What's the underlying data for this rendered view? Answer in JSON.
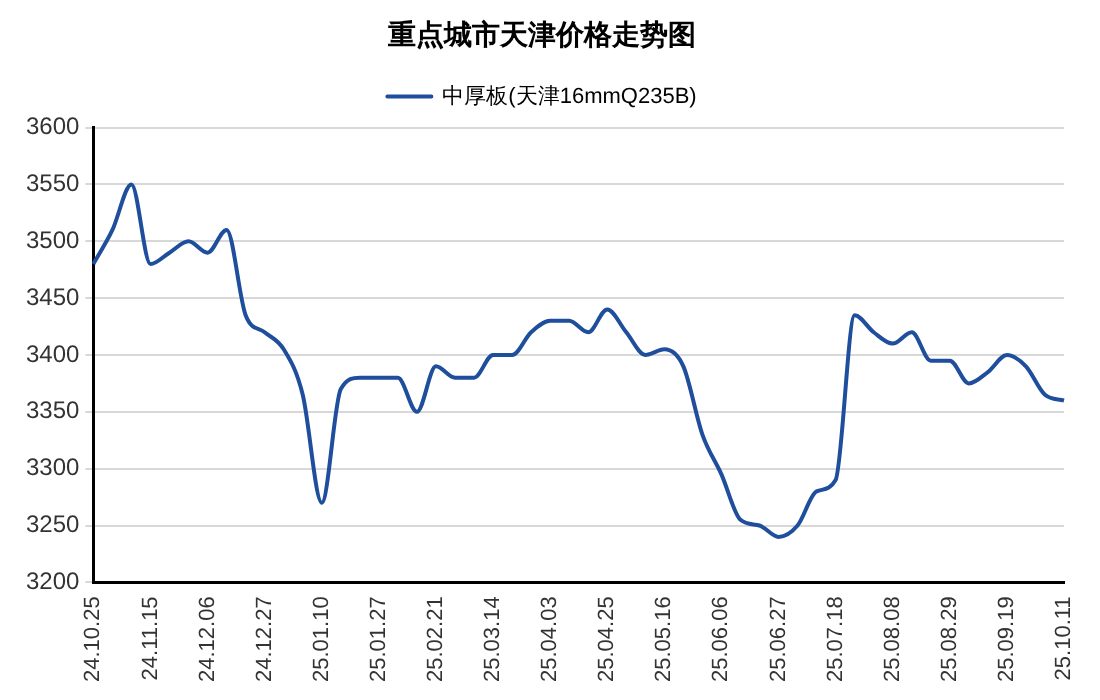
{
  "chart_data": {
    "type": "line",
    "title": "重点城市天津价格走势图",
    "categories": [
      "24.10.25",
      null,
      null,
      "24.11.15",
      null,
      null,
      "24.12.06",
      null,
      null,
      "24.12.27",
      null,
      null,
      "25.01.10",
      null,
      null,
      "25.01.27",
      null,
      null,
      "25.02.21",
      null,
      null,
      "25.03.14",
      null,
      null,
      "25.04.03",
      null,
      null,
      "25.04.25",
      null,
      null,
      "25.05.16",
      null,
      null,
      "25.06.06",
      null,
      null,
      "25.06.27",
      null,
      null,
      "25.07.18",
      null,
      null,
      "25.08.08",
      null,
      null,
      "25.08.29",
      null,
      null,
      "25.09.19",
      null,
      null,
      "25.10.11"
    ],
    "series": [
      {
        "name": "中厚板(天津16mmQ235B)",
        "color": "#1f4e9c",
        "values": [
          3480,
          3510,
          3550,
          3480,
          3490,
          3500,
          3490,
          3510,
          3435,
          3420,
          3405,
          3365,
          3270,
          3370,
          3380,
          3380,
          3380,
          3350,
          3390,
          3380,
          3380,
          3400,
          3400,
          3420,
          3430,
          3430,
          3420,
          3440,
          3420,
          3400,
          3405,
          3390,
          3330,
          3295,
          3255,
          3250,
          3240,
          3250,
          3280,
          3290,
          3435,
          3420,
          3410,
          3420,
          3395,
          3395,
          3375,
          3385,
          3400,
          3390,
          3365,
          3360
        ]
      }
    ],
    "ylim": [
      3200,
      3600
    ],
    "yticks": [
      3200,
      3250,
      3300,
      3350,
      3400,
      3450,
      3500,
      3550,
      3600
    ],
    "grid": "y",
    "legend": "top",
    "marker": "none",
    "line_style": "solid"
  }
}
